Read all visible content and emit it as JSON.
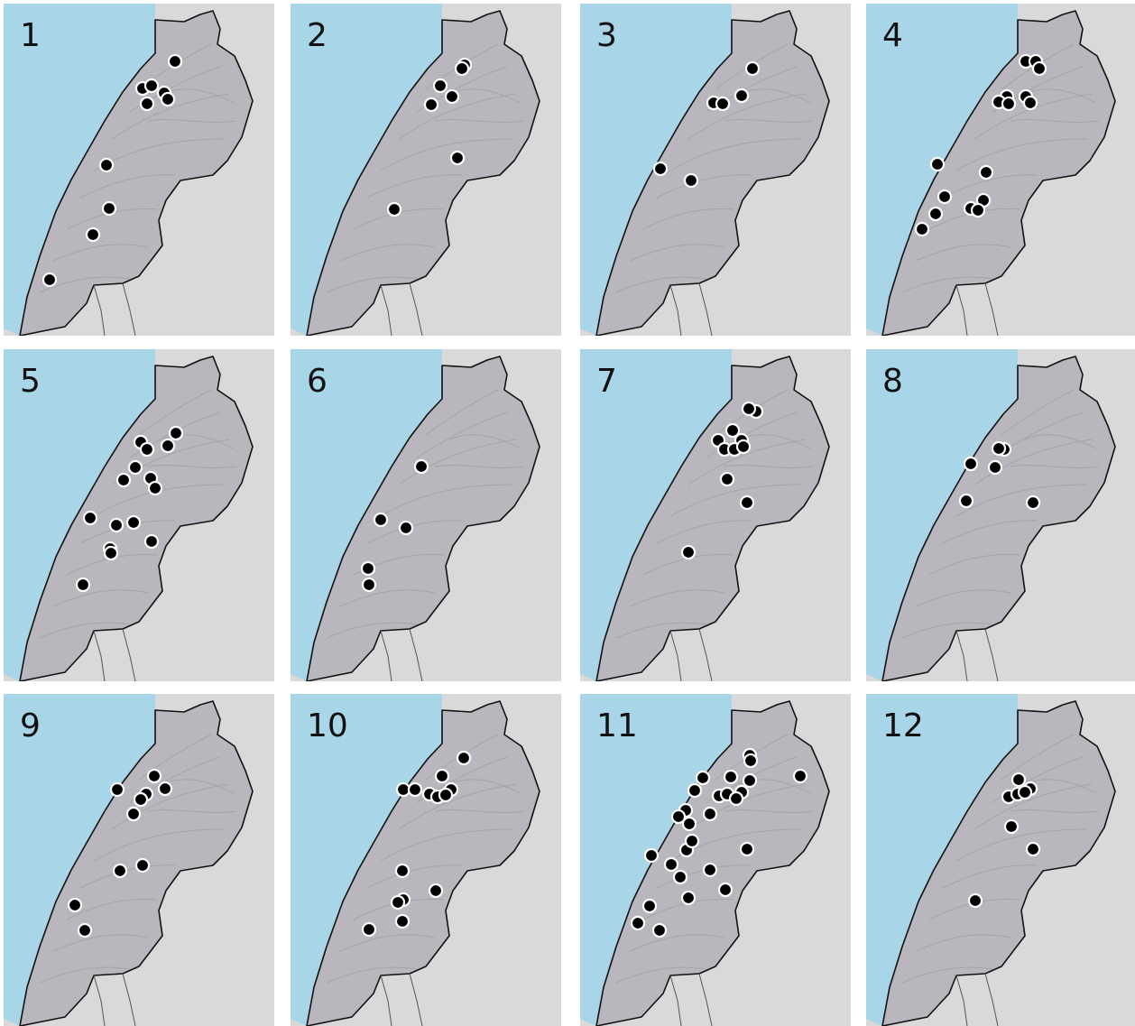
{
  "colors": {
    "sea": "#a8d5e7",
    "land_outside": "#d9d9d9",
    "country": "#b9b6bd",
    "border": "#111111",
    "marker_fill": "#000000",
    "marker_stroke": "#ffffff"
  },
  "panels": [
    {
      "label": "1",
      "points": [
        [
          194,
          68
        ],
        [
          158,
          98
        ],
        [
          168,
          95
        ],
        [
          182,
          103
        ],
        [
          186,
          110
        ],
        [
          163,
          115
        ],
        [
          118,
          183
        ],
        [
          121,
          231
        ],
        [
          103,
          260
        ],
        [
          55,
          310
        ]
      ]
    },
    {
      "label": "2",
      "points": [
        [
          515,
          72
        ],
        [
          512,
          76
        ],
        [
          488,
          95
        ],
        [
          501,
          107
        ],
        [
          478,
          116
        ],
        [
          507,
          175
        ],
        [
          437,
          232
        ]
      ]
    },
    {
      "label": "3",
      "points": [
        [
          834,
          76
        ],
        [
          822,
          106
        ],
        [
          791,
          114
        ],
        [
          801,
          115
        ],
        [
          732,
          187
        ],
        [
          766,
          200
        ]
      ]
    },
    {
      "label": "4",
      "points": [
        [
          1137,
          68
        ],
        [
          1148,
          68
        ],
        [
          1152,
          76
        ],
        [
          1116,
          107
        ],
        [
          1137,
          107
        ],
        [
          1107,
          113
        ],
        [
          1118,
          115
        ],
        [
          1142,
          114
        ],
        [
          1039,
          182
        ],
        [
          1093,
          191
        ],
        [
          1047,
          218
        ],
        [
          1090,
          222
        ],
        [
          1076,
          231
        ],
        [
          1084,
          233
        ],
        [
          1037,
          237
        ],
        [
          1022,
          254
        ]
      ]
    },
    {
      "label": "5",
      "points": [
        [
          195,
          480
        ],
        [
          156,
          490
        ],
        [
          186,
          494
        ],
        [
          163,
          498
        ],
        [
          150,
          518
        ],
        [
          167,
          530
        ],
        [
          172,
          541
        ],
        [
          137,
          532
        ],
        [
          100,
          574
        ],
        [
          129,
          582
        ],
        [
          148,
          579
        ],
        [
          168,
          600
        ],
        [
          122,
          608
        ],
        [
          123,
          613
        ],
        [
          92,
          648
        ]
      ]
    },
    {
      "label": "6",
      "points": [
        [
          467,
          517
        ],
        [
          422,
          576
        ],
        [
          450,
          585
        ],
        [
          408,
          630
        ],
        [
          409,
          648
        ]
      ]
    },
    {
      "label": "7",
      "points": [
        [
          838,
          456
        ],
        [
          830,
          453
        ],
        [
          812,
          477
        ],
        [
          796,
          488
        ],
        [
          822,
          488
        ],
        [
          803,
          498
        ],
        [
          814,
          498
        ],
        [
          824,
          495
        ],
        [
          806,
          531
        ],
        [
          828,
          557
        ],
        [
          763,
          612
        ]
      ]
    },
    {
      "label": "8",
      "points": [
        [
          1113,
          498
        ],
        [
          1107,
          497
        ],
        [
          1076,
          514
        ],
        [
          1103,
          518
        ],
        [
          1071,
          555
        ],
        [
          1145,
          557
        ]
      ]
    },
    {
      "label": "9",
      "points": [
        [
          171,
          860
        ],
        [
          130,
          875
        ],
        [
          183,
          874
        ],
        [
          162,
          880
        ],
        [
          156,
          886
        ],
        [
          148,
          902
        ],
        [
          158,
          959
        ],
        [
          133,
          965
        ],
        [
          83,
          1003
        ],
        [
          94,
          1031
        ]
      ]
    },
    {
      "label": "10",
      "points": [
        [
          514,
          840
        ],
        [
          490,
          860
        ],
        [
          447,
          875
        ],
        [
          460,
          875
        ],
        [
          476,
          880
        ],
        [
          485,
          883
        ],
        [
          500,
          875
        ],
        [
          494,
          881
        ],
        [
          446,
          965
        ],
        [
          483,
          987
        ],
        [
          447,
          997
        ],
        [
          441,
          1000
        ],
        [
          446,
          1021
        ],
        [
          409,
          1030
        ]
      ]
    },
    {
      "label": "11",
      "points": [
        [
          831,
          837
        ],
        [
          832,
          843
        ],
        [
          887,
          860
        ],
        [
          779,
          862
        ],
        [
          810,
          861
        ],
        [
          831,
          865
        ],
        [
          822,
          878
        ],
        [
          770,
          876
        ],
        [
          797,
          882
        ],
        [
          806,
          880
        ],
        [
          816,
          885
        ],
        [
          760,
          898
        ],
        [
          787,
          902
        ],
        [
          752,
          905
        ],
        [
          764,
          913
        ],
        [
          761,
          942
        ],
        [
          767,
          932
        ],
        [
          828,
          941
        ],
        [
          722,
          948
        ],
        [
          744,
          958
        ],
        [
          787,
          964
        ],
        [
          754,
          972
        ],
        [
          804,
          986
        ],
        [
          763,
          995
        ],
        [
          720,
          1004
        ],
        [
          707,
          1023
        ],
        [
          731,
          1031
        ]
      ]
    },
    {
      "label": "12",
      "points": [
        [
          1129,
          864
        ],
        [
          1142,
          874
        ],
        [
          1118,
          883
        ],
        [
          1128,
          880
        ],
        [
          1136,
          878
        ],
        [
          1121,
          916
        ],
        [
          1145,
          941
        ],
        [
          1081,
          998
        ]
      ]
    }
  ]
}
